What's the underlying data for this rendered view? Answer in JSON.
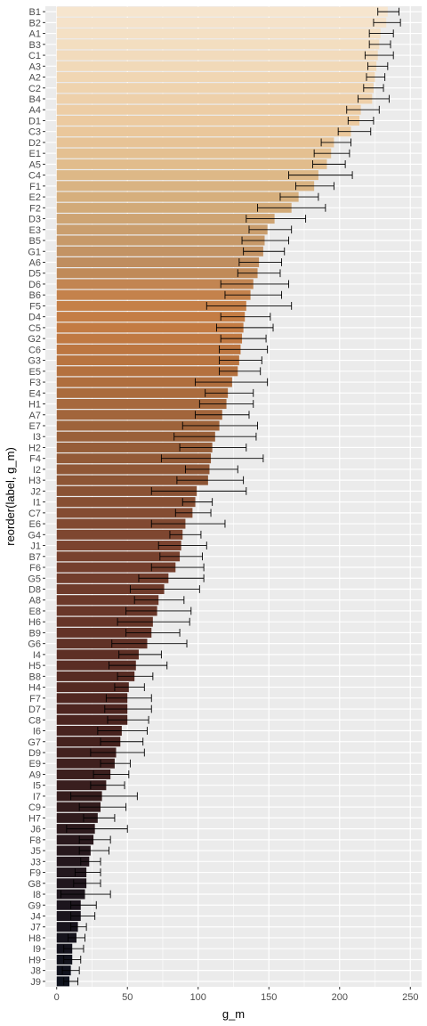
{
  "chart_data": {
    "type": "bar",
    "orientation": "horizontal",
    "xlabel": "g_m",
    "ylabel": "reorder(label, g_m)",
    "xlim": [
      -8,
      258
    ],
    "xticks": [
      0,
      50,
      100,
      150,
      200,
      250
    ],
    "grid": true,
    "legend": "none",
    "colors": {
      "panel": "#EBEBEB",
      "grid": "#FFFFFF",
      "errorbar": "#000000",
      "tick_text": "#4D4D4D"
    },
    "bars": [
      {
        "label": "B1",
        "value": 234,
        "lo": 227,
        "hi": 242,
        "color": "#F6E5CE"
      },
      {
        "label": "B2",
        "value": 233,
        "lo": 224,
        "hi": 243,
        "color": "#F5E2C9"
      },
      {
        "label": "A1",
        "value": 229,
        "lo": 221,
        "hi": 238,
        "color": "#F4E0C4"
      },
      {
        "label": "B3",
        "value": 228,
        "lo": 221,
        "hi": 236,
        "color": "#F3DEC0"
      },
      {
        "label": "C1",
        "value": 227,
        "lo": 218,
        "hi": 238,
        "color": "#F2DBBC"
      },
      {
        "label": "A3",
        "value": 226,
        "lo": 220,
        "hi": 234,
        "color": "#F1D9B8"
      },
      {
        "label": "A2",
        "value": 225,
        "lo": 219,
        "hi": 232,
        "color": "#F0D6B3"
      },
      {
        "label": "C2",
        "value": 224,
        "lo": 217,
        "hi": 231,
        "color": "#EFD3AE"
      },
      {
        "label": "B4",
        "value": 223,
        "lo": 213,
        "hi": 235,
        "color": "#EED0AA"
      },
      {
        "label": "A4",
        "value": 215,
        "lo": 205,
        "hi": 228,
        "color": "#EDCDA5"
      },
      {
        "label": "D1",
        "value": 214,
        "lo": 206,
        "hi": 224,
        "color": "#ECCAA0"
      },
      {
        "label": "C3",
        "value": 208,
        "lo": 199,
        "hi": 222,
        "color": "#EAC79B"
      },
      {
        "label": "D2",
        "value": 196,
        "lo": 187,
        "hi": 208,
        "color": "#E7C396"
      },
      {
        "label": "E1",
        "value": 194,
        "lo": 182,
        "hi": 207,
        "color": "#E4C091"
      },
      {
        "label": "A5",
        "value": 191,
        "lo": 181,
        "hi": 204,
        "color": "#E1BC8C"
      },
      {
        "label": "C4",
        "value": 185,
        "lo": 164,
        "hi": 209,
        "color": "#DDB887"
      },
      {
        "label": "F1",
        "value": 182,
        "lo": 169,
        "hi": 196,
        "color": "#D9B382"
      },
      {
        "label": "E2",
        "value": 171,
        "lo": 158,
        "hi": 185,
        "color": "#D6AF7D"
      },
      {
        "label": "F2",
        "value": 166,
        "lo": 142,
        "hi": 190,
        "color": "#D2AA78"
      },
      {
        "label": "D3",
        "value": 154,
        "lo": 134,
        "hi": 176,
        "color": "#CEA473"
      },
      {
        "label": "E3",
        "value": 149,
        "lo": 136,
        "hi": 166,
        "color": "#CA9E6E"
      },
      {
        "label": "B5",
        "value": 147,
        "lo": 131,
        "hi": 164,
        "color": "#C79969"
      },
      {
        "label": "G1",
        "value": 146,
        "lo": 132,
        "hi": 161,
        "color": "#C39364"
      },
      {
        "label": "A6",
        "value": 143,
        "lo": 129,
        "hi": 159,
        "color": "#BF8D5F"
      },
      {
        "label": "D5",
        "value": 142,
        "lo": 128,
        "hi": 158,
        "color": "#C08A58"
      },
      {
        "label": "D6",
        "value": 139,
        "lo": 116,
        "hi": 164,
        "color": "#C28552"
      },
      {
        "label": "B6",
        "value": 137,
        "lo": 119,
        "hi": 159,
        "color": "#C4824C"
      },
      {
        "label": "F5",
        "value": 134,
        "lo": 106,
        "hi": 166,
        "color": "#C58048"
      },
      {
        "label": "D4",
        "value": 133,
        "lo": 116,
        "hi": 151,
        "color": "#C47D45"
      },
      {
        "label": "C5",
        "value": 132,
        "lo": 113,
        "hi": 153,
        "color": "#C37B43"
      },
      {
        "label": "G2",
        "value": 131,
        "lo": 116,
        "hi": 148,
        "color": "#C07942"
      },
      {
        "label": "C6",
        "value": 130,
        "lo": 115,
        "hi": 149,
        "color": "#BC7641"
      },
      {
        "label": "G3",
        "value": 129,
        "lo": 115,
        "hi": 145,
        "color": "#B87440"
      },
      {
        "label": "E5",
        "value": 128,
        "lo": 115,
        "hi": 144,
        "color": "#B4713F"
      },
      {
        "label": "F3",
        "value": 124,
        "lo": 98,
        "hi": 149,
        "color": "#AF6E3E"
      },
      {
        "label": "E4",
        "value": 121,
        "lo": 105,
        "hi": 139,
        "color": "#AA6B3D"
      },
      {
        "label": "H1",
        "value": 120,
        "lo": 101,
        "hi": 139,
        "color": "#A6683C"
      },
      {
        "label": "A7",
        "value": 117,
        "lo": 98,
        "hi": 136,
        "color": "#A2653B"
      },
      {
        "label": "E7",
        "value": 115,
        "lo": 89,
        "hi": 142,
        "color": "#9E633A"
      },
      {
        "label": "I3",
        "value": 112,
        "lo": 83,
        "hi": 141,
        "color": "#9A6039"
      },
      {
        "label": "H2",
        "value": 110,
        "lo": 87,
        "hi": 134,
        "color": "#965D38"
      },
      {
        "label": "F4",
        "value": 109,
        "lo": 74,
        "hi": 146,
        "color": "#935A37"
      },
      {
        "label": "I2",
        "value": 108,
        "lo": 91,
        "hi": 128,
        "color": "#905736"
      },
      {
        "label": "H3",
        "value": 107,
        "lo": 85,
        "hi": 132,
        "color": "#8D5535"
      },
      {
        "label": "J2",
        "value": 99,
        "lo": 67,
        "hi": 134,
        "color": "#8A5234"
      },
      {
        "label": "I1",
        "value": 98,
        "lo": 89,
        "hi": 110,
        "color": "#874F33"
      },
      {
        "label": "C7",
        "value": 96,
        "lo": 84,
        "hi": 109,
        "color": "#844C32"
      },
      {
        "label": "E6",
        "value": 91,
        "lo": 67,
        "hi": 119,
        "color": "#814931"
      },
      {
        "label": "G4",
        "value": 89,
        "lo": 80,
        "hi": 102,
        "color": "#7E4630"
      },
      {
        "label": "J1",
        "value": 88,
        "lo": 72,
        "hi": 106,
        "color": "#7B432F"
      },
      {
        "label": "B7",
        "value": 87,
        "lo": 73,
        "hi": 103,
        "color": "#78412E"
      },
      {
        "label": "F6",
        "value": 84,
        "lo": 67,
        "hi": 104,
        "color": "#753F2D"
      },
      {
        "label": "G5",
        "value": 79,
        "lo": 58,
        "hi": 104,
        "color": "#723D2C"
      },
      {
        "label": "D8",
        "value": 76,
        "lo": 52,
        "hi": 101,
        "color": "#6F3B2B"
      },
      {
        "label": "A8",
        "value": 72,
        "lo": 55,
        "hi": 90,
        "color": "#6C392A"
      },
      {
        "label": "E8",
        "value": 71,
        "lo": 49,
        "hi": 95,
        "color": "#693729"
      },
      {
        "label": "H6",
        "value": 68,
        "lo": 43,
        "hi": 94,
        "color": "#663528"
      },
      {
        "label": "B9",
        "value": 67,
        "lo": 49,
        "hi": 87,
        "color": "#633327"
      },
      {
        "label": "G6",
        "value": 64,
        "lo": 39,
        "hi": 92,
        "color": "#603126"
      },
      {
        "label": "I4",
        "value": 58,
        "lo": 44,
        "hi": 74,
        "color": "#5D2F25"
      },
      {
        "label": "H5",
        "value": 56,
        "lo": 37,
        "hi": 78,
        "color": "#5A2D24"
      },
      {
        "label": "B8",
        "value": 55,
        "lo": 43,
        "hi": 68,
        "color": "#572B23"
      },
      {
        "label": "H4",
        "value": 51,
        "lo": 41,
        "hi": 62,
        "color": "#542922"
      },
      {
        "label": "F7",
        "value": 50,
        "lo": 35,
        "hi": 67,
        "color": "#512721"
      },
      {
        "label": "D7",
        "value": 50,
        "lo": 34,
        "hi": 67,
        "color": "#4E2520"
      },
      {
        "label": "C8",
        "value": 50,
        "lo": 36,
        "hi": 65,
        "color": "#4B241F"
      },
      {
        "label": "I6",
        "value": 46,
        "lo": 29,
        "hi": 64,
        "color": "#48231F"
      },
      {
        "label": "G7",
        "value": 45,
        "lo": 31,
        "hi": 61,
        "color": "#45221E"
      },
      {
        "label": "D9",
        "value": 42,
        "lo": 24,
        "hi": 62,
        "color": "#42211E"
      },
      {
        "label": "E9",
        "value": 41,
        "lo": 31,
        "hi": 52,
        "color": "#3F201E"
      },
      {
        "label": "A9",
        "value": 38,
        "lo": 26,
        "hi": 51,
        "color": "#3C1F1E"
      },
      {
        "label": "I5",
        "value": 35,
        "lo": 24,
        "hi": 48,
        "color": "#391E1E"
      },
      {
        "label": "I7",
        "value": 32,
        "lo": 10,
        "hi": 57,
        "color": "#361D1D"
      },
      {
        "label": "C9",
        "value": 31,
        "lo": 16,
        "hi": 49,
        "color": "#331C1D"
      },
      {
        "label": "H7",
        "value": 29,
        "lo": 19,
        "hi": 41,
        "color": "#301B1D"
      },
      {
        "label": "J6",
        "value": 27,
        "lo": 7,
        "hi": 50,
        "color": "#2D1A1D"
      },
      {
        "label": "F8",
        "value": 26,
        "lo": 16,
        "hi": 38,
        "color": "#2A191D"
      },
      {
        "label": "J5",
        "value": 24,
        "lo": 16,
        "hi": 37,
        "color": "#27181D"
      },
      {
        "label": "J3",
        "value": 23,
        "lo": 17,
        "hi": 31,
        "color": "#24171D"
      },
      {
        "label": "F9",
        "value": 21,
        "lo": 13,
        "hi": 31,
        "color": "#22171D"
      },
      {
        "label": "G8",
        "value": 21,
        "lo": 12,
        "hi": 31,
        "color": "#20161D"
      },
      {
        "label": "I8",
        "value": 20,
        "lo": 3,
        "hi": 38,
        "color": "#1E161D"
      },
      {
        "label": "G9",
        "value": 17,
        "lo": 10,
        "hi": 28,
        "color": "#1C151D"
      },
      {
        "label": "J4",
        "value": 17,
        "lo": 10,
        "hi": 27,
        "color": "#1A151D"
      },
      {
        "label": "J7",
        "value": 15,
        "lo": 10,
        "hi": 21,
        "color": "#18141D"
      },
      {
        "label": "H8",
        "value": 14,
        "lo": 8,
        "hi": 20,
        "color": "#16141D"
      },
      {
        "label": "I9",
        "value": 11,
        "lo": 5,
        "hi": 19,
        "color": "#14131D"
      },
      {
        "label": "H9",
        "value": 11,
        "lo": 5,
        "hi": 17,
        "color": "#12131D"
      },
      {
        "label": "J8",
        "value": 10,
        "lo": 4,
        "hi": 16,
        "color": "#10121D"
      },
      {
        "label": "J9",
        "value": 9,
        "lo": 5,
        "hi": 15,
        "color": "#0E121D"
      }
    ]
  }
}
